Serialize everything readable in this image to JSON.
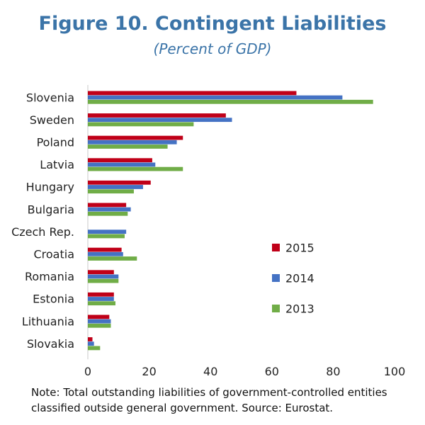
{
  "header": {
    "title": "Figure 10. Contingent Liabilities",
    "subtitle": "(Percent of GDP)"
  },
  "note": "Note: Total outstanding liabilities of government-controlled entities classified outside general government. Source: Eurostat.",
  "chart_data": {
    "type": "bar",
    "orientation": "horizontal",
    "title": "Figure 10. Contingent Liabilities",
    "subtitle": "(Percent of GDP)",
    "categories": [
      "Slovenia",
      "Sweden",
      "Poland",
      "Latvia",
      "Hungary",
      "Bulgaria",
      "Czech Rep.",
      "Croatia",
      "Romania",
      "Estonia",
      "Lithuania",
      "Slovakia"
    ],
    "series": [
      {
        "name": "2015",
        "color": "#c00018",
        "values": [
          68,
          45,
          31,
          21,
          20.5,
          12.5,
          null,
          11,
          8.5,
          8.5,
          7,
          1.5
        ]
      },
      {
        "name": "2014",
        "color": "#4472c4",
        "values": [
          83,
          47,
          29,
          22,
          18,
          14,
          12.5,
          11.5,
          10,
          8.5,
          7.5,
          2
        ]
      },
      {
        "name": "2013",
        "color": "#70ad47",
        "values": [
          93,
          34.5,
          26,
          31,
          15,
          13,
          12,
          16,
          10,
          9,
          7.5,
          4
        ]
      }
    ],
    "xlim": [
      0,
      100
    ],
    "xticks": [
      0,
      20,
      40,
      60,
      80,
      100
    ],
    "xlabel": "",
    "ylabel": "",
    "grid": false,
    "legend_position": "right"
  }
}
